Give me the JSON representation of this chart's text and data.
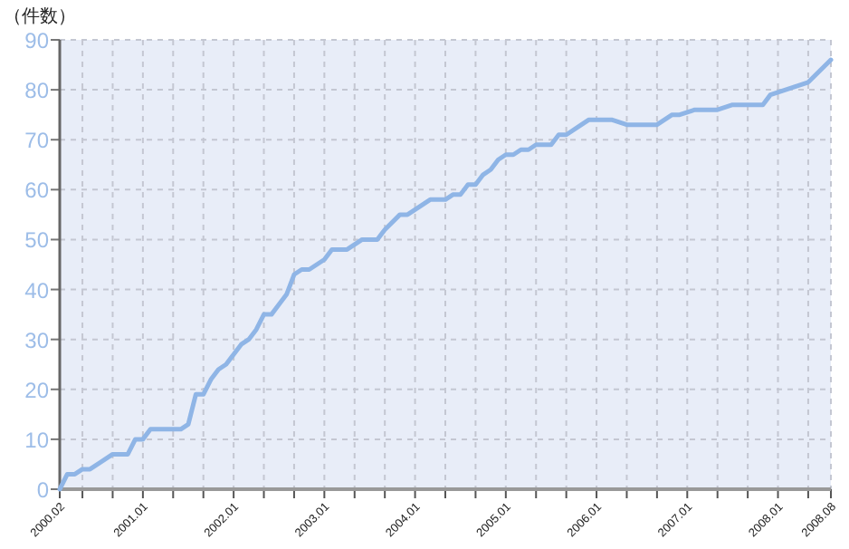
{
  "chart_data": {
    "type": "line",
    "ylabel": "（件数）",
    "color": "#8fb5e6",
    "grid": true,
    "x": [
      "2000-02",
      "2000-03",
      "2000-04",
      "2000-05",
      "2000-06",
      "2000-09",
      "2000-11",
      "2000-12",
      "2001-01",
      "2001-02",
      "2001-06",
      "2001-07",
      "2001-08",
      "2001-09",
      "2001-10",
      "2001-11",
      "2001-12",
      "2002-01",
      "2002-02",
      "2002-03",
      "2002-04",
      "2002-05",
      "2002-06",
      "2002-07",
      "2002-08",
      "2002-09",
      "2002-10",
      "2002-11",
      "2002-12",
      "2003-01",
      "2003-02",
      "2003-04",
      "2003-06",
      "2003-08",
      "2003-09",
      "2003-11",
      "2003-12",
      "2004-02",
      "2004-03",
      "2004-05",
      "2004-06",
      "2004-07",
      "2004-08",
      "2004-09",
      "2004-10",
      "2004-11",
      "2004-12",
      "2005-01",
      "2005-02",
      "2005-03",
      "2005-04",
      "2005-05",
      "2005-07",
      "2005-08",
      "2005-09",
      "2005-11",
      "2005-12",
      "2006-03",
      "2006-05",
      "2006-09",
      "2006-11",
      "2006-12",
      "2007-02",
      "2007-05",
      "2007-07",
      "2007-11",
      "2007-12",
      "2008-01",
      "2008-05",
      "2008-08"
    ],
    "values": [
      0,
      3,
      3,
      4,
      4,
      7,
      7,
      10,
      10,
      12,
      12,
      13,
      19,
      19,
      22,
      24,
      25,
      27,
      29,
      30,
      32,
      35,
      35,
      37,
      39,
      43,
      44,
      44,
      45,
      46,
      48,
      48,
      50,
      50,
      52,
      55,
      55,
      57,
      58,
      58,
      59,
      59,
      61,
      61,
      63,
      64,
      66,
      67,
      67,
      68,
      68,
      69,
      69,
      71,
      71,
      73,
      74,
      74,
      73,
      73,
      75,
      75,
      76,
      76,
      77,
      77,
      79,
      79.5,
      81.5,
      86
    ],
    "xlim": [
      "2000-02",
      "2008-08"
    ],
    "ylim": [
      0,
      90
    ],
    "yticks": [
      0,
      10,
      20,
      30,
      40,
      50,
      60,
      70,
      80,
      90
    ],
    "xticks": [
      {
        "value": "2000-02",
        "label": "2000.02"
      },
      {
        "value": "2000-05",
        "label": null
      },
      {
        "value": "2000-09",
        "label": null
      },
      {
        "value": "2001-01",
        "label": "2001.01"
      },
      {
        "value": "2001-05",
        "label": null
      },
      {
        "value": "2001-09",
        "label": null
      },
      {
        "value": "2002-01",
        "label": "2002.01"
      },
      {
        "value": "2002-05",
        "label": null
      },
      {
        "value": "2002-09",
        "label": null
      },
      {
        "value": "2003-01",
        "label": "2003.01"
      },
      {
        "value": "2003-05",
        "label": null
      },
      {
        "value": "2003-09",
        "label": null
      },
      {
        "value": "2004-01",
        "label": "2004.01"
      },
      {
        "value": "2004-05",
        "label": null
      },
      {
        "value": "2004-09",
        "label": null
      },
      {
        "value": "2005-01",
        "label": "2005.01"
      },
      {
        "value": "2005-05",
        "label": null
      },
      {
        "value": "2005-09",
        "label": null
      },
      {
        "value": "2006-01",
        "label": "2006.01"
      },
      {
        "value": "2006-05",
        "label": null
      },
      {
        "value": "2006-09",
        "label": null
      },
      {
        "value": "2007-01",
        "label": "2007.01"
      },
      {
        "value": "2007-05",
        "label": null
      },
      {
        "value": "2007-09",
        "label": null
      },
      {
        "value": "2008-01",
        "label": "2008.01"
      },
      {
        "value": "2008-05",
        "label": null
      },
      {
        "value": "2008-08",
        "label": "2008.08"
      }
    ]
  }
}
